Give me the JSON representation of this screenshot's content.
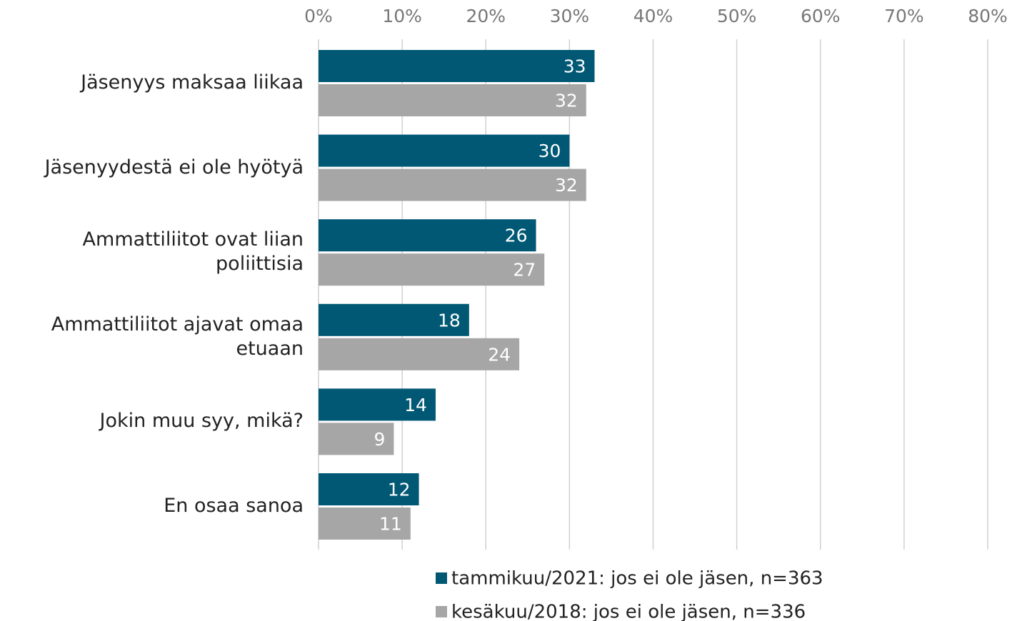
{
  "chart_data": {
    "type": "bar",
    "orientation": "horizontal",
    "categories": [
      "Jäsenyys maksaa liikaa",
      "Jäsenyydestä ei ole hyötyä",
      "Ammattiliitot ovat liian poliittisia",
      "Ammattiliitot ajavat omaa etuaan",
      "Jokin muu syy, mikä?",
      "En osaa sanoa"
    ],
    "series": [
      {
        "name": "tammikuu/2021: jos ei ole jäsen, n=363",
        "color": "#005874",
        "values": [
          33,
          30,
          26,
          18,
          14,
          12
        ]
      },
      {
        "name": "kesäkuu/2018: jos ei ole jäsen, n=336",
        "color": "#a6a6a6",
        "values": [
          32,
          32,
          27,
          24,
          9,
          11
        ]
      }
    ],
    "xlim": [
      0,
      80
    ],
    "xticks": [
      {
        "value": 0,
        "label": "0%"
      },
      {
        "value": 10,
        "label": "10%"
      },
      {
        "value": 20,
        "label": "20%"
      },
      {
        "value": 30,
        "label": "30%"
      },
      {
        "value": 40,
        "label": "40%"
      },
      {
        "value": 50,
        "label": "50%"
      },
      {
        "value": 60,
        "label": "60%"
      },
      {
        "value": 70,
        "label": "70%"
      },
      {
        "value": 80,
        "label": "80%"
      }
    ],
    "grid": true,
    "legend": "bottom"
  }
}
